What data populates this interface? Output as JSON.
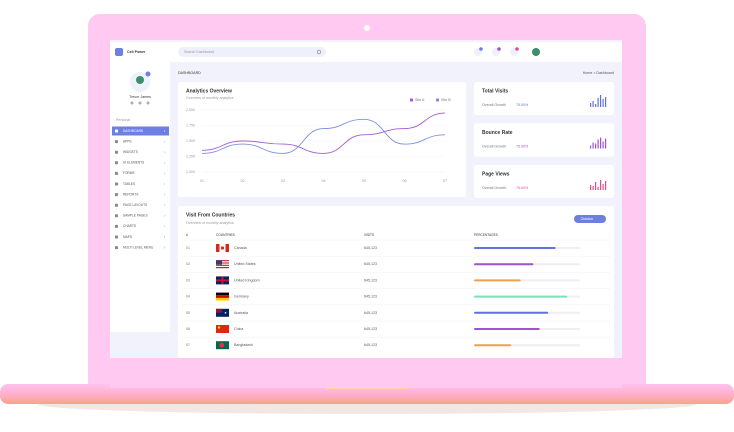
{
  "sidebar": {
    "brand": "Cell Power",
    "user": "Trevor James",
    "section": "Personal",
    "menu": [
      "DASHBOARD",
      "APPS",
      "WIDGETS",
      "UI ELEMENTS",
      "FORMS",
      "TABLES",
      "REPORTS",
      "PAGE LAYOUTS",
      "SAMPLE PAGES",
      "CHARTS",
      "MAPS",
      "MULTI LEVEL MENU"
    ]
  },
  "header": {
    "search_placeholder": "Search Dashboard"
  },
  "breadcrumb": {
    "page": "DASHBOARD",
    "trail": "Home > Dashboard"
  },
  "chart_data": {
    "type": "line",
    "title": "Analytics Overview",
    "subtitle": "Overview of monthly analytics",
    "categories": [
      "01",
      "02",
      "03",
      "04",
      "05",
      "06",
      "07"
    ],
    "series": [
      {
        "name": "Site A",
        "color": "#a45bd6",
        "values": [
          1350,
          1500,
          1450,
          1300,
          1600,
          1700,
          1950
        ]
      },
      {
        "name": "Site B",
        "color": "#7f8fe0",
        "values": [
          1300,
          1450,
          1300,
          1700,
          1850,
          1450,
          1600
        ]
      }
    ],
    "ylim": [
      1000,
      2000
    ],
    "yticks": [
      {
        "value": 1000,
        "label": "1,000"
      },
      {
        "value": 1250,
        "label": "1,250"
      },
      {
        "value": 1500,
        "label": "1,500"
      },
      {
        "value": 1750,
        "label": "1,750"
      },
      {
        "value": 2000,
        "label": "2,000"
      }
    ]
  },
  "stats": [
    {
      "title": "Total Visits",
      "growth_label": "Overall Growth",
      "growth": "75.00%",
      "color": "#5f72dd",
      "bars": [
        4,
        6,
        3,
        9,
        12,
        8,
        10
      ]
    },
    {
      "title": "Bounce Rate",
      "growth_label": "Overall Growth",
      "growth": "75.00%",
      "color": "#a152d0",
      "bars": [
        3,
        6,
        5,
        9,
        11,
        7,
        10
      ]
    },
    {
      "title": "Page Views",
      "growth_label": "Overall Growth",
      "growth": "75.00%",
      "color": "#e04f8b",
      "bars": [
        5,
        4,
        8,
        3,
        10,
        6,
        9
      ]
    }
  ],
  "table": {
    "title": "Visit From Countries",
    "subtitle": "Overview of monthly analytics",
    "filter": "October",
    "columns": [
      "#",
      "COUNTRIES",
      "VISITS",
      "PERCENTAGES"
    ],
    "rows": [
      {
        "id": "01",
        "country": "Canada",
        "visits": "645,123",
        "percentage": 77,
        "color": "#5f72dd"
      },
      {
        "id": "02",
        "country": "United States",
        "visits": "645,123",
        "percentage": 56,
        "color": "#a152d0"
      },
      {
        "id": "03",
        "country": "United Kingdom",
        "visits": "645,123",
        "percentage": 44,
        "color": "#f0a04b"
      },
      {
        "id": "04",
        "country": "Germany",
        "visits": "645,123",
        "percentage": 88,
        "color": "#7ee3b0"
      },
      {
        "id": "05",
        "country": "Australia",
        "visits": "645,123",
        "percentage": 70,
        "color": "#5f72dd"
      },
      {
        "id": "06",
        "country": "China",
        "visits": "645,123",
        "percentage": 62,
        "color": "#a152d0"
      },
      {
        "id": "07",
        "country": "Bangladesh",
        "visits": "645,123",
        "percentage": 35,
        "color": "#f0a04b"
      }
    ]
  }
}
